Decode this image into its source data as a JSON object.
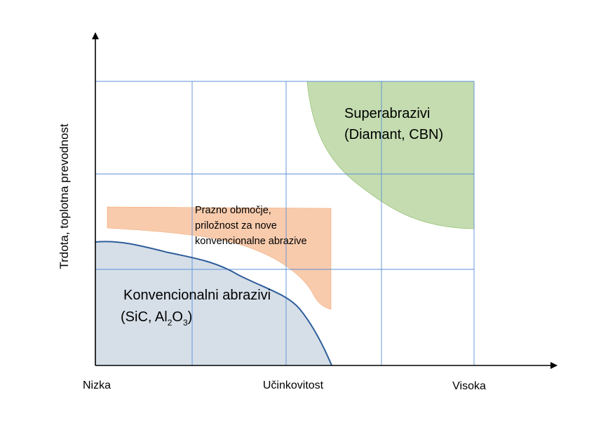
{
  "diagram": {
    "y_axis_title": "Trdota, toplotna prevodnost",
    "x_tick_labels": [
      "Nizka",
      "Učinkovitost",
      "Visoka"
    ],
    "regions": {
      "superabrasive": {
        "line1": "Superabrazivi",
        "line2": "(Diamant, CBN)",
        "fill": "#c4dcb0",
        "stroke": "#70ad47"
      },
      "gap": {
        "line1": "Prazno območje,",
        "line2": "priložnost za nove",
        "line3": "konvencionalne abrazive",
        "fill": "#f8cbad",
        "stroke": "#ed7d31"
      },
      "conventional": {
        "line1": "Konvencionalni abrazivi",
        "line2_prefix": "(SiC, Al",
        "sub1": "2",
        "mid": "O",
        "sub2": "3",
        "line2_suffix": ")",
        "fill": "#d6dfe8",
        "stroke": "#2e5d9a"
      }
    },
    "colors": {
      "grid": "#5b8fd6",
      "axis": "#000000"
    }
  }
}
